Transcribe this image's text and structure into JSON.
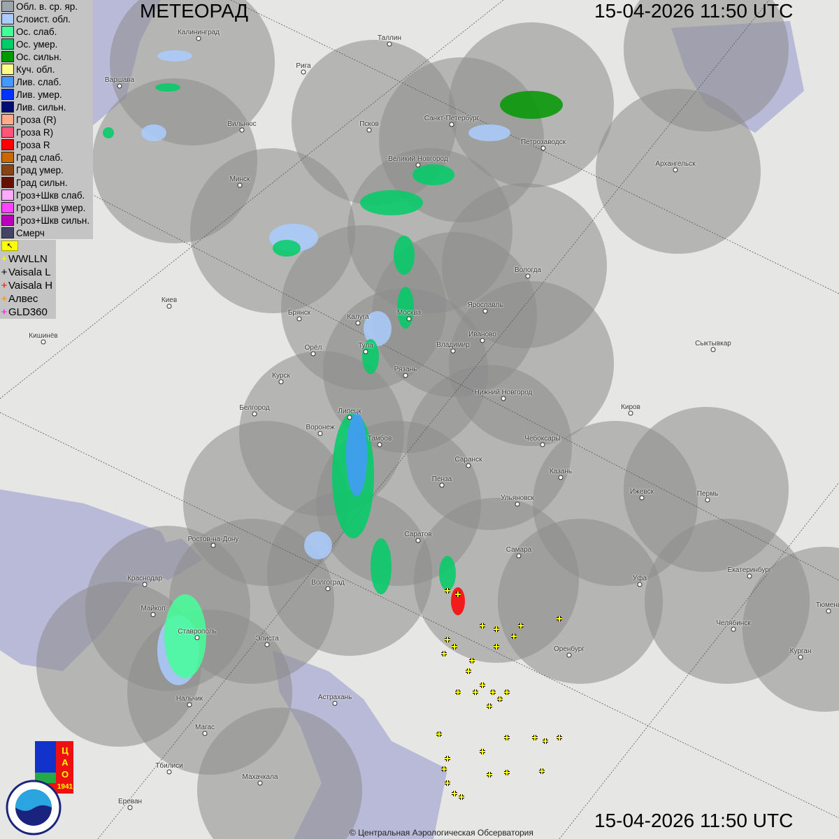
{
  "header": {
    "title": "МЕТЕОРАД",
    "timestamp_top": "15-04-2026  11:50 UTC",
    "timestamp_bottom": "15-04-2026  11:50 UTC"
  },
  "legend": [
    {
      "label": "Обл. в. ср. яр.",
      "color": "#9aa6ab"
    },
    {
      "label": "Слоист. обл.",
      "color": "#aaccff"
    },
    {
      "label": "Ос. слаб.",
      "color": "#44ff99"
    },
    {
      "label": "Ос. умер.",
      "color": "#00cc66"
    },
    {
      "label": "Ос. сильн.",
      "color": "#009900"
    },
    {
      "label": "Куч. обл.",
      "color": "#ffff88"
    },
    {
      "label": "Лив. слаб.",
      "color": "#4499ff"
    },
    {
      "label": "Лив. умер.",
      "color": "#0033ff"
    },
    {
      "label": "Лив. сильн.",
      "color": "#000d77"
    },
    {
      "label": "Гроза (R)",
      "color": "#ffaa88"
    },
    {
      "label": "Гроза R)",
      "color": "#ff5577"
    },
    {
      "label": "Гроза R",
      "color": "#ff0000"
    },
    {
      "label": "Град слаб.",
      "color": "#cc6600"
    },
    {
      "label": "Град умер.",
      "color": "#884411"
    },
    {
      "label": "Град сильн.",
      "color": "#661100"
    },
    {
      "label": "Гроз+Шкв слаб.",
      "color": "#ffaaff"
    },
    {
      "label": "Гроз+Шкв умер.",
      "color": "#ff44ff"
    },
    {
      "label": "Гроз+Шкв сильн.",
      "color": "#bb00bb"
    },
    {
      "label": "Смерч",
      "color": "#444466"
    }
  ],
  "toggle_button": {
    "icon": "arrow-icon",
    "label": "↖"
  },
  "lightning_sources": [
    {
      "label": "WWLLN",
      "color": "#ffff00"
    },
    {
      "label": "Vaisala L",
      "color": "#000000"
    },
    {
      "label": "Vaisala H",
      "color": "#ff0000"
    },
    {
      "label": "Алвес",
      "color": "#ff8800"
    },
    {
      "label": "GLD360",
      "color": "#ff00ff"
    }
  ],
  "cities": [
    "Калининград",
    "Рига",
    "Таллин",
    "Варшава",
    "Вильнюс",
    "Псков",
    "Санкт-Петербург",
    "Петрозаводск",
    "Архангельск",
    "Великий Новгород",
    "Минск",
    "Вологда",
    "Ярославль",
    "Москва",
    "Калуга",
    "Брянск",
    "Киев",
    "Кишинёв",
    "Иваново",
    "Владимир",
    "Тула",
    "Орёл",
    "Рязань",
    "Сыктывкар",
    "Курск",
    "Нижний Новгород",
    "Киров",
    "Белгород",
    "Липецк",
    "Воронеж",
    "Тамбов",
    "Чебоксары",
    "Саранск",
    "Казань",
    "Пенза",
    "Ижевск",
    "Пермь",
    "Ульяновск",
    "Саратов",
    "Ростов-на-Дону",
    "Самара",
    "Екатеринбург",
    "Краснодар",
    "Уфа",
    "Волгоград",
    "Майкоп",
    "Тюмень",
    "Челябинск",
    "Ставрополь",
    "Элиста",
    "Оренбург",
    "Курган",
    "Астрахань",
    "Нальчик",
    "Магас",
    "Тбилиси",
    "Махачкала",
    "Ереван"
  ],
  "logos": {
    "cao": "ЦАО 1941",
    "roshydromet": "РОСГИДРОМЕТ ROSHYDROMET"
  },
  "copyright": "© Центральная Аэрологическая Обсерватория",
  "colors": {
    "radar_coverage": "#8c8c8c",
    "sea": "#b9b9d8",
    "land": "#e6e6e4"
  }
}
